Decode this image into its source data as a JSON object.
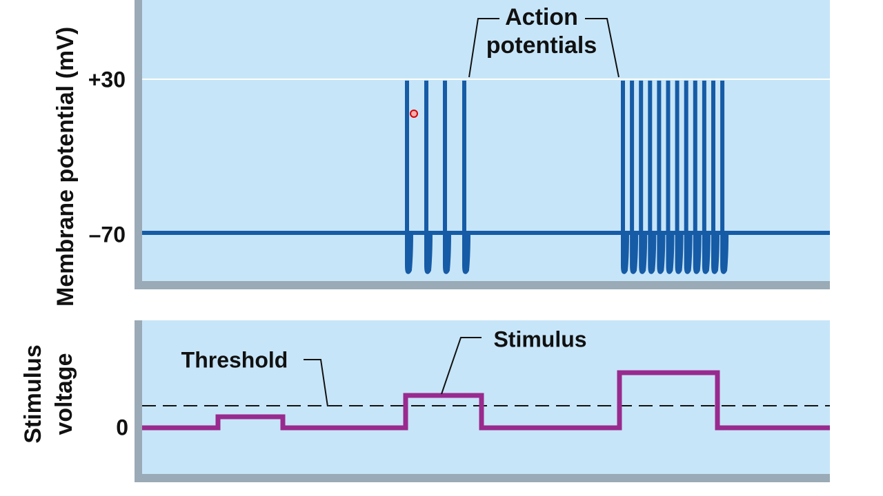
{
  "axes": {
    "top_label": "Membrane potential (mV)",
    "top_ticks": [
      "+30",
      "–70"
    ],
    "bottom_label": [
      "Stimulus",
      "voltage"
    ],
    "bottom_ticks": [
      "0"
    ]
  },
  "annotations": {
    "action_potentials": [
      "Action",
      "potentials"
    ],
    "threshold": "Threshold",
    "stimulus": "Stimulus"
  }
}
